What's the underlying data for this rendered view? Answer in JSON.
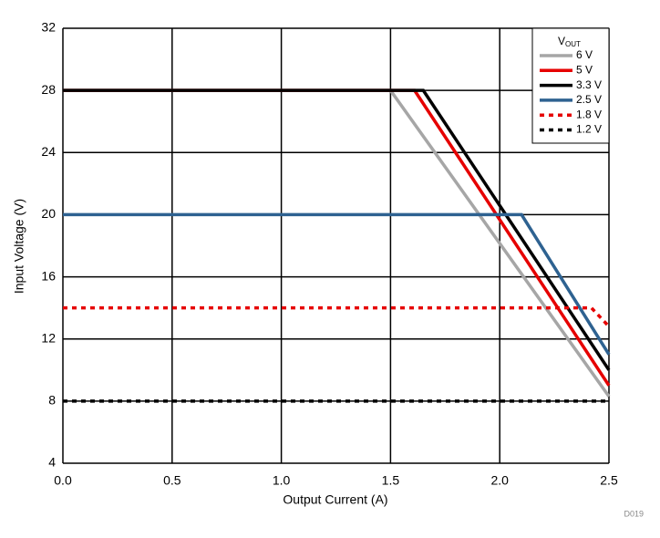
{
  "chart_data": {
    "type": "line",
    "xlabel": "Output Current (A)",
    "ylabel": "Input Voltage (V)",
    "annotation": "D019",
    "legend_title": [
      "V",
      "OUT"
    ],
    "legend_position": "upper right",
    "grid": true,
    "xlim": [
      0,
      2.5
    ],
    "ylim": [
      4,
      32
    ],
    "xticks": [
      {
        "value": 0,
        "label": "0.0"
      },
      0.5,
      {
        "value": 1,
        "label": "1.0"
      },
      1.5,
      {
        "value": 2,
        "label": "2.0"
      },
      2.5
    ],
    "yticks": [
      4,
      8,
      12,
      16,
      20,
      24,
      28,
      32
    ],
    "series": [
      {
        "name": "6 V",
        "color": "#a6a6a6",
        "style": "solid",
        "x": [
          0,
          1.5,
          2.5
        ],
        "values": [
          28,
          28,
          8.3
        ]
      },
      {
        "name": "5 V",
        "color": "#e60000",
        "style": "solid",
        "x": [
          0,
          1.61,
          2.5
        ],
        "values": [
          28,
          28,
          9
        ]
      },
      {
        "name": "3.3 V",
        "color": "#000000",
        "style": "solid",
        "x": [
          0,
          1.65,
          2.5
        ],
        "values": [
          28,
          28,
          10
        ]
      },
      {
        "name": "2.5 V",
        "color": "#2e6291",
        "style": "solid",
        "x": [
          0,
          2.1,
          2.5
        ],
        "values": [
          20,
          20,
          11
        ]
      },
      {
        "name": "1.8 V",
        "color": "#e60000",
        "style": "dashed",
        "x": [
          0,
          2.42,
          2.5
        ],
        "values": [
          14,
          14,
          12.8
        ]
      },
      {
        "name": "1.2 V",
        "color": "#000000",
        "style": "dashed",
        "x": [
          0,
          2.5
        ],
        "values": [
          8,
          8
        ]
      }
    ]
  }
}
